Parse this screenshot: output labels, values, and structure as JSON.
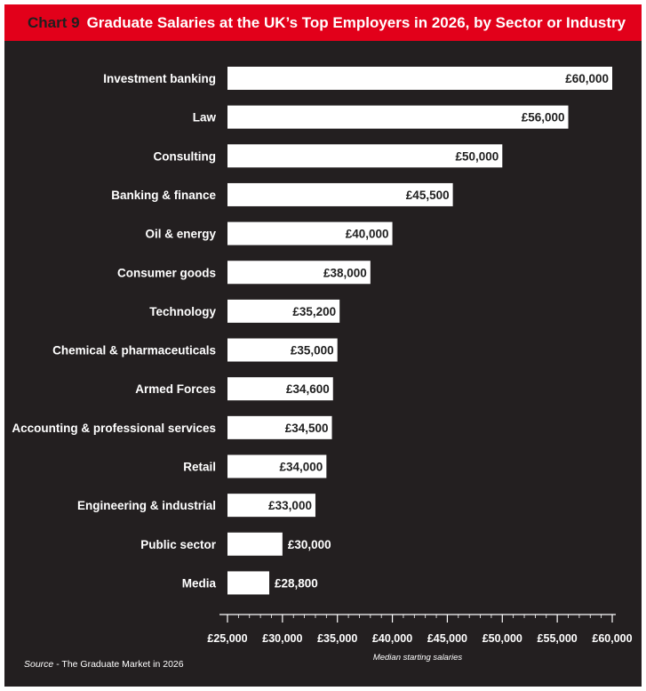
{
  "header": {
    "chart_number": "Chart 9",
    "title": "Graduate Salaries at the UK’s Top Employers in 2026, by Sector or Industry"
  },
  "footer": {
    "source_label": "Source",
    "source_text": " - The Graduate Market in 2026"
  },
  "colors": {
    "title_bar": "#e2001a",
    "background": "#231f20",
    "bar": "#ffffff",
    "text": "#ffffff",
    "value_text_in_bar": "#1f1f1f"
  },
  "chart_data": {
    "type": "bar",
    "orientation": "horizontal",
    "categories": [
      "Investment banking",
      "Law",
      "Consulting",
      "Banking & finance",
      "Oil & energy",
      "Consumer goods",
      "Technology",
      "Chemical & pharmaceuticals",
      "Armed Forces",
      "Accounting & professional services",
      "Retail",
      "Engineering & industrial",
      "Public sector",
      "Media"
    ],
    "values": [
      60000,
      56000,
      50000,
      45500,
      40000,
      38000,
      35200,
      35000,
      34600,
      34500,
      34000,
      33000,
      30000,
      28800
    ],
    "value_labels": [
      "£60,000",
      "£56,000",
      "£50,000",
      "£45,500",
      "£40,000",
      "£38,000",
      "£35,200",
      "£35,000",
      "£34,600",
      "£34,500",
      "£34,000",
      "£33,000",
      "£30,000",
      "£28,800"
    ],
    "xlim": [
      25000,
      60000
    ],
    "xticks": [
      25000,
      30000,
      35000,
      40000,
      45000,
      50000,
      55000,
      60000
    ],
    "xtick_labels": [
      "£25,000",
      "£30,000",
      "£35,000",
      "£40,000",
      "£45,000",
      "£50,000",
      "£55,000",
      "£60,000"
    ],
    "minor_ticks_per_interval": 4,
    "xlabel": "Median starting salaries",
    "grid": false,
    "legend": "none"
  }
}
